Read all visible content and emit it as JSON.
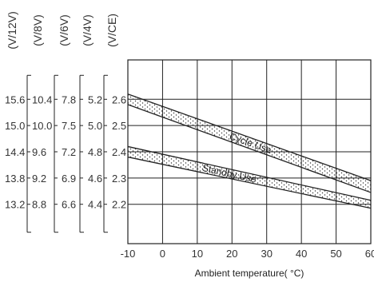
{
  "chart_data": {
    "type": "line",
    "xlabel": "Ambient temperature( °C)",
    "x_ticks": [
      "-10",
      "0",
      "10",
      "20",
      "30",
      "40",
      "50",
      "60"
    ],
    "xlim": [
      -10,
      60
    ],
    "ylim": [
      2.05,
      2.75
    ],
    "y_axes": [
      {
        "unit": "(V/12V)",
        "ticks": [
          "15.6",
          "15.0",
          "14.4",
          "13.8",
          "13.2"
        ]
      },
      {
        "unit": "(V/8V)",
        "ticks": [
          "10.4",
          "10.0",
          "9.6",
          "9.2",
          "8.8"
        ]
      },
      {
        "unit": "(V/6V)",
        "ticks": [
          "7.8",
          "7.5",
          "7.2",
          "6.9",
          "6.6"
        ]
      },
      {
        "unit": "(V/4V)",
        "ticks": [
          "5.2",
          "5.0",
          "4.8",
          "4.6",
          "4.4"
        ]
      },
      {
        "unit": "(V/CE)",
        "ticks": [
          "2.6",
          "2.5",
          "2.4",
          "2.3",
          "2.2"
        ]
      }
    ],
    "y_values": [
      2.6,
      2.5,
      2.4,
      2.3,
      2.2
    ],
    "series": [
      {
        "name": "Cycle Use",
        "x": [
          -10,
          60
        ],
        "upper": [
          2.62,
          2.29
        ],
        "lower": [
          2.58,
          2.245
        ]
      },
      {
        "name": "Standby Use",
        "x": [
          -10,
          60
        ],
        "upper": [
          2.42,
          2.215
        ],
        "lower": [
          2.38,
          2.185
        ]
      }
    ],
    "grid": true
  }
}
